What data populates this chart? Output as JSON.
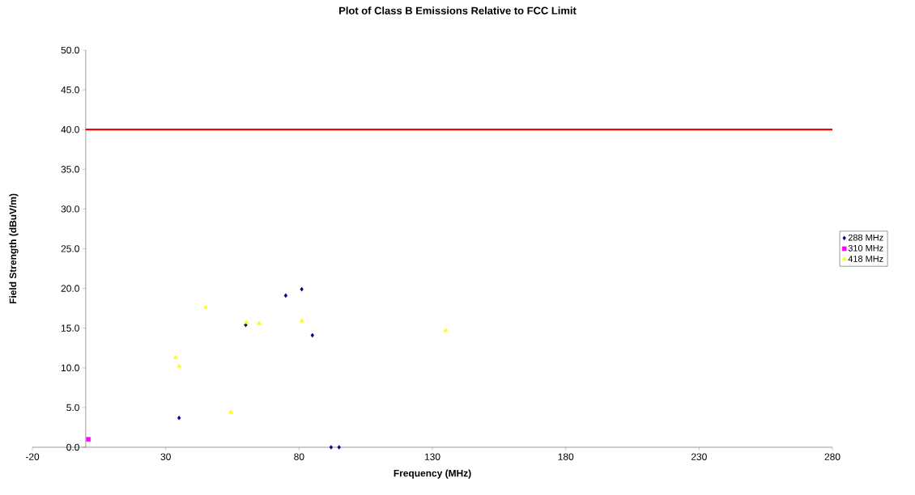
{
  "chart_data": {
    "type": "scatter",
    "title": "Plot of Class B Emissions Relative to FCC Limit",
    "xlabel": "Frequency (MHz)",
    "ylabel": "Field Strength (dBuV/m)",
    "series": [
      {
        "name": "288 MHz",
        "color": "#000080",
        "marker": "diamond",
        "x": [
          35,
          60,
          75,
          81,
          85,
          92,
          95
        ],
        "values": [
          3.7,
          15.4,
          19.1,
          19.9,
          14.1,
          0,
          0
        ]
      },
      {
        "name": "310 MHz",
        "color": "#ff00ff",
        "marker": "square",
        "x": [
          1
        ],
        "values": [
          1.0
        ]
      },
      {
        "name": "418 MHz",
        "color": "#ffff00",
        "marker": "triangle",
        "x": [
          33.7,
          35,
          45,
          54.4,
          60.2,
          65,
          81,
          135
        ],
        "values": [
          11.3,
          10.2,
          17.6,
          4.4,
          15.7,
          15.6,
          15.9,
          14.7
        ]
      },
      {
        "type": "line",
        "color": "#ff0000",
        "marker": "none",
        "x": [
          0,
          280
        ],
        "values": [
          40,
          40
        ]
      }
    ],
    "xlim": [
      -20,
      280
    ],
    "xticks": [
      -20,
      30,
      80,
      130,
      180,
      230,
      280
    ],
    "ylim": [
      0,
      50
    ],
    "yticks": [
      {
        "value": 0,
        "label": "0.0"
      },
      {
        "value": 5,
        "label": "5.0"
      },
      {
        "value": 10,
        "label": "10.0"
      },
      {
        "value": 15,
        "label": "15.0"
      },
      {
        "value": 20,
        "label": "20.0"
      },
      {
        "value": 25,
        "label": "25.0"
      },
      {
        "value": 30,
        "label": "30.0"
      },
      {
        "value": 35,
        "label": "35.0"
      },
      {
        "value": 40,
        "label": "40.0"
      },
      {
        "value": 45,
        "label": "45.0"
      },
      {
        "value": 50,
        "label": "50.0"
      }
    ],
    "grid": false,
    "legend": "right"
  }
}
